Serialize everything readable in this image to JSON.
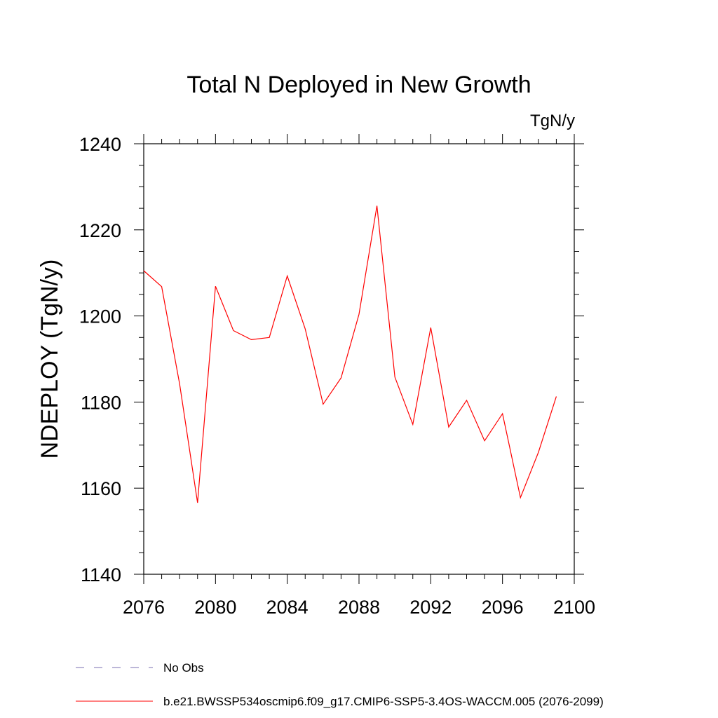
{
  "chart_data": {
    "type": "line",
    "title": "Total N Deployed in New Growth",
    "units_label": "TgN/y",
    "ylabel": "NDEPLOY  (TgN/y)",
    "xlabel": "",
    "xlim": [
      2076,
      2100
    ],
    "ylim": [
      1140,
      1240
    ],
    "x_ticks": [
      2076,
      2080,
      2084,
      2088,
      2092,
      2096,
      2100
    ],
    "y_ticks": [
      1140,
      1160,
      1180,
      1200,
      1220,
      1240
    ],
    "grid": false,
    "legend_position": "bottom-left",
    "x": [
      2076,
      2077,
      2078,
      2079,
      2080,
      2081,
      2082,
      2083,
      2084,
      2085,
      2086,
      2087,
      2088,
      2089,
      2090,
      2091,
      2092,
      2093,
      2094,
      2095,
      2096,
      2097,
      2098,
      2099
    ],
    "series": [
      {
        "name": "b.e21.BWSSP534oscmip6.f09_g17.CMIP6-SSP5-3.4OS-WACCM.005 (2076-2099)",
        "color": "#ff0000",
        "values": [
          1210.5,
          1206.8,
          1184.2,
          1156.6,
          1206.9,
          1196.6,
          1194.5,
          1195.0,
          1209.3,
          1197.0,
          1179.5,
          1185.6,
          1200.4,
          1225.6,
          1185.8,
          1174.8,
          1197.3,
          1174.2,
          1180.4,
          1171.0,
          1177.3,
          1157.8,
          1168.3,
          1181.3
        ]
      }
    ],
    "legend": [
      {
        "label": "No Obs",
        "color": "#7a6fb0",
        "style": "dashed"
      },
      {
        "label": "b.e21.BWSSP534oscmip6.f09_g17.CMIP6-SSP5-3.4OS-WACCM.005 (2076-2099)",
        "color": "#ff0000",
        "style": "solid"
      }
    ]
  }
}
